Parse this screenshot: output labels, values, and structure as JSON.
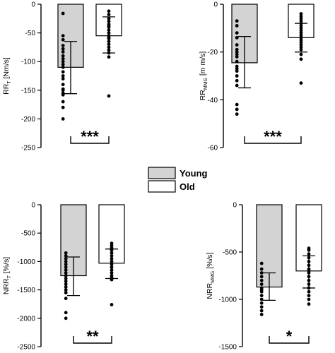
{
  "legend": {
    "items": [
      {
        "label": "Young",
        "color": "#d3d3d3"
      },
      {
        "label": "Old",
        "color": "#ffffff"
      }
    ]
  },
  "chart_data": [
    {
      "type": "bar",
      "panel": "top-left",
      "ylabel": {
        "main": "RR",
        "sub": "T",
        "unit": " [Nm/s]"
      },
      "ylim": [
        -250,
        0
      ],
      "yticks": [
        0,
        -50,
        -100,
        -150,
        -200,
        -250
      ],
      "categories": [
        "Young",
        "Old"
      ],
      "series": [
        {
          "name": "Young",
          "mean": -110,
          "sd_low": -156,
          "sd_high": -65,
          "points": [
            -16,
            -55,
            -62,
            -72,
            -78,
            -83,
            -90,
            -95,
            -100,
            -105,
            -110,
            -118,
            -125,
            -130,
            -140,
            -148,
            -150,
            -155,
            -158,
            -170,
            -180,
            -200
          ]
        },
        {
          "name": "Old",
          "mean": -55,
          "sd_low": -85,
          "sd_high": -22,
          "points": [
            -12,
            -18,
            -25,
            -30,
            -35,
            -38,
            -40,
            -45,
            -50,
            -55,
            -58,
            -60,
            -65,
            -70,
            -75,
            -80,
            -85,
            -92,
            -160
          ]
        }
      ],
      "significance": "***"
    },
    {
      "type": "bar",
      "panel": "top-right",
      "ylabel": {
        "main": "RR",
        "sub": "MMG",
        "unit": " [m m/s]"
      },
      "ylim": [
        -60,
        0
      ],
      "yticks": [
        0,
        -20,
        -40,
        -60
      ],
      "categories": [
        "Young",
        "Old"
      ],
      "series": [
        {
          "name": "Young",
          "mean": -24.5,
          "sd_low": -35,
          "sd_high": -13.5,
          "points": [
            -7,
            -9,
            -12,
            -14,
            -17,
            -19,
            -20,
            -21,
            -22,
            -24,
            -26,
            -27,
            -28,
            -30,
            -32,
            -34,
            -42,
            -44,
            -46
          ]
        },
        {
          "name": "Old",
          "mean": -14,
          "sd_low": -20,
          "sd_high": -8,
          "points": [
            -4,
            -5,
            -6,
            -7,
            -8,
            -9,
            -10,
            -11,
            -12,
            -13,
            -14,
            -15,
            -16,
            -17,
            -18,
            -19,
            -21,
            -23,
            -33
          ]
        }
      ],
      "significance": "***"
    },
    {
      "type": "bar",
      "panel": "bottom-left",
      "ylabel": {
        "main": "NRR",
        "sub": "T",
        "unit": " [%/s]"
      },
      "ylim": [
        -2500,
        0
      ],
      "yticks": [
        0,
        -500,
        -1000,
        -1500,
        -2000,
        -2500
      ],
      "categories": [
        "Young",
        "Old"
      ],
      "series": [
        {
          "name": "Young",
          "mean": -1250,
          "sd_low": -1600,
          "sd_high": -920,
          "points": [
            -850,
            -900,
            -950,
            -1000,
            -1050,
            -1100,
            -1150,
            -1200,
            -1250,
            -1300,
            -1350,
            -1400,
            -1450,
            -1500,
            -1550,
            -1650,
            -1900,
            -2000
          ]
        },
        {
          "name": "Old",
          "mean": -1030,
          "sd_low": -1300,
          "sd_high": -780,
          "points": [
            -680,
            -720,
            -760,
            -800,
            -850,
            -900,
            -950,
            -1000,
            -1050,
            -1100,
            -1150,
            -1200,
            -1250,
            -1280,
            -1300,
            -1320,
            -1760
          ]
        }
      ],
      "significance": "**"
    },
    {
      "type": "bar",
      "panel": "bottom-right",
      "ylabel": {
        "main": "NRR",
        "sub": "MMG",
        "unit": " [%/s]"
      },
      "ylim": [
        -1500,
        0
      ],
      "yticks": [
        0,
        -500,
        -1000,
        -1500
      ],
      "categories": [
        "Young",
        "Old"
      ],
      "series": [
        {
          "name": "Young",
          "mean": -870,
          "sd_low": -1010,
          "sd_high": -720,
          "points": [
            -620,
            -680,
            -720,
            -760,
            -800,
            -840,
            -880,
            -900,
            -920,
            -960,
            -1000,
            -1040,
            -1080,
            -1120,
            -1160
          ]
        },
        {
          "name": "Old",
          "mean": -700,
          "sd_low": -880,
          "sd_high": -540,
          "points": [
            -460,
            -480,
            -520,
            -560,
            -600,
            -640,
            -680,
            -700,
            -720,
            -760,
            -800,
            -840,
            -880,
            -920,
            -960,
            -1000,
            -1050
          ]
        }
      ],
      "significance": "*"
    }
  ]
}
